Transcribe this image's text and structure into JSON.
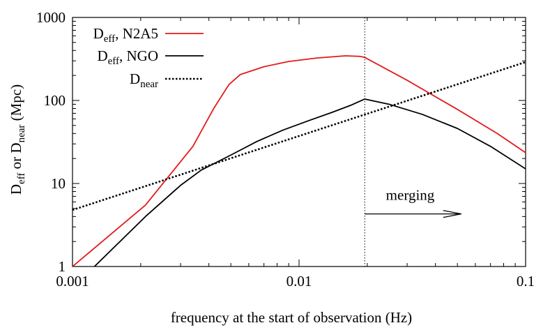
{
  "chart_data": {
    "type": "line",
    "xscale": "log",
    "yscale": "log",
    "xlim": [
      0.001,
      0.1
    ],
    "ylim": [
      1,
      1000
    ],
    "xlabel": "frequency at the start of observation (Hz)",
    "ylabel": {
      "parts": [
        {
          "text": "D",
          "sub": false
        },
        {
          "text": "eff",
          "sub": true
        },
        {
          "text": " or D",
          "sub": false
        },
        {
          "text": "near",
          "sub": true
        },
        {
          "text": " (Mpc)",
          "sub": false
        }
      ]
    },
    "x_ticks": [
      {
        "value": 0.001,
        "label": "0.001"
      },
      {
        "value": 0.01,
        "label": "0.01"
      },
      {
        "value": 0.1,
        "label": "0.1"
      }
    ],
    "y_ticks": [
      {
        "value": 1,
        "label": "1"
      },
      {
        "value": 10,
        "label": "10"
      },
      {
        "value": 100,
        "label": "100"
      },
      {
        "value": 1000,
        "label": "1000"
      }
    ],
    "grid": false,
    "legend": {
      "placement": "top-left",
      "entries": [
        {
          "series": 0,
          "main": "D",
          "sub": "eff",
          "tail": ", N2A5"
        },
        {
          "series": 1,
          "main": "D",
          "sub": "eff",
          "tail": ", NGO"
        },
        {
          "series": 2,
          "main": "D",
          "sub": "near",
          "tail": ""
        }
      ]
    },
    "series": [
      {
        "name": "Deff, N2A5",
        "color": "#e31a1c",
        "style": "solid",
        "points": [
          [
            0.001,
            1.0
          ],
          [
            0.0021,
            5.5
          ],
          [
            0.0034,
            28
          ],
          [
            0.0042,
            80
          ],
          [
            0.0049,
            155
          ],
          [
            0.0055,
            205
          ],
          [
            0.007,
            255
          ],
          [
            0.009,
            295
          ],
          [
            0.012,
            325
          ],
          [
            0.016,
            345
          ],
          [
            0.0185,
            340
          ],
          [
            0.0195,
            330
          ],
          [
            0.03,
            175
          ],
          [
            0.05,
            78
          ],
          [
            0.075,
            40
          ],
          [
            0.1,
            23.5
          ]
        ]
      },
      {
        "name": "Deff, NGO",
        "color": "#000000",
        "style": "solid",
        "points": [
          [
            0.00125,
            1.0
          ],
          [
            0.0021,
            4.0
          ],
          [
            0.003,
            9.5
          ],
          [
            0.0037,
            14.5
          ],
          [
            0.005,
            22
          ],
          [
            0.0065,
            32
          ],
          [
            0.0085,
            44
          ],
          [
            0.011,
            57
          ],
          [
            0.014,
            72
          ],
          [
            0.017,
            88
          ],
          [
            0.0195,
            104
          ],
          [
            0.025,
            90
          ],
          [
            0.035,
            68
          ],
          [
            0.05,
            46
          ],
          [
            0.07,
            28
          ],
          [
            0.1,
            15
          ]
        ]
      },
      {
        "name": "Dnear",
        "color": "#000000",
        "style": "dotted",
        "points": [
          [
            0.001,
            4.8
          ],
          [
            0.1,
            290
          ]
        ]
      }
    ],
    "annotations": [
      {
        "type": "vline",
        "x": 0.0195,
        "style": "dotted"
      },
      {
        "type": "arrow",
        "x_from": 0.0195,
        "x_to": 0.052,
        "y": 4.3,
        "label": "merging"
      }
    ]
  }
}
